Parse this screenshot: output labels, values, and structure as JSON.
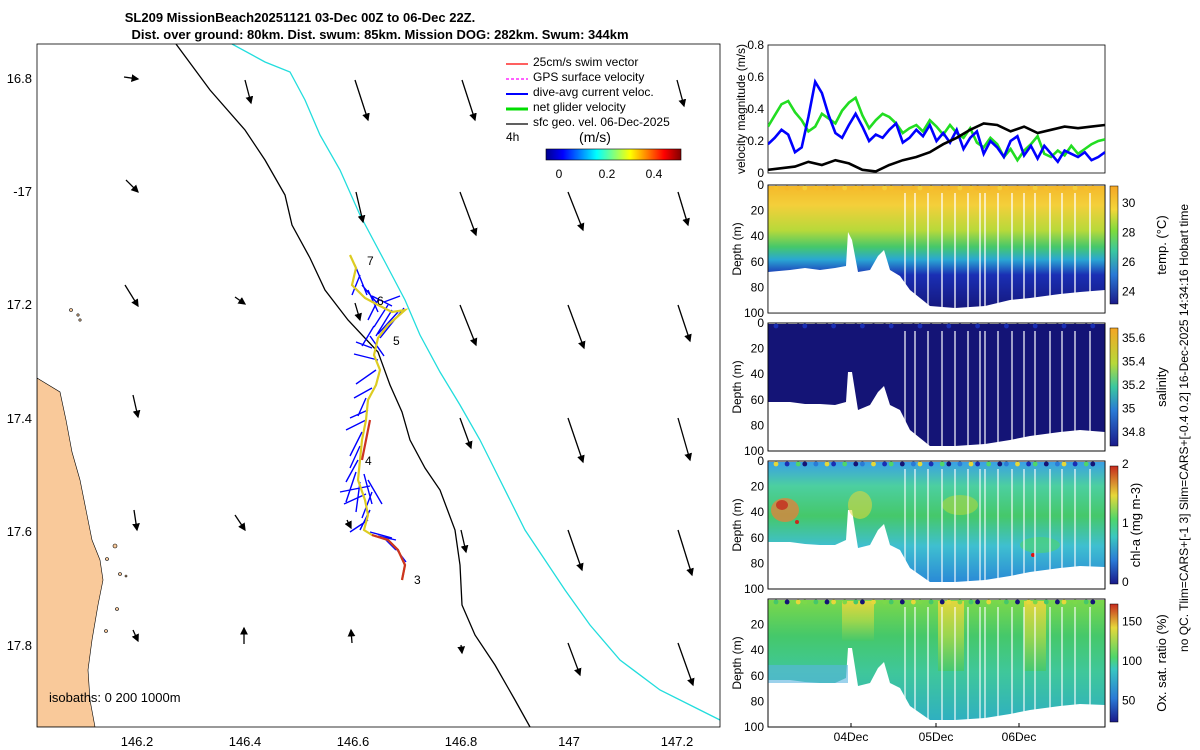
{
  "title": {
    "line1": "SL209 MissionBeach20251121 03-Dec 00Z to 06-Dec 22Z.",
    "line2": "Dist. over ground: 80km. Dist. swum: 85km. Mission DOG: 282km. Swum: 344km"
  },
  "map": {
    "lat_ticks": [
      "16.8",
      "-17",
      "17.2",
      "17.4",
      "17.6",
      "17.8"
    ],
    "lon_ticks": [
      "146.2",
      "146.4",
      "146.6",
      "146.8",
      "147",
      "147.2"
    ],
    "legend": [
      {
        "label": "25cm/s swim vector",
        "color": "#ff0000"
      },
      {
        "label": "GPS surface velocity",
        "color": "#ff00ff"
      },
      {
        "label": "dive-avg current veloc.",
        "color": "#0000ff"
      },
      {
        "label": "net glider velocity",
        "color": "#00dd00"
      },
      {
        "label": "sfc geo. vel. 06-Dec-2025",
        "color": "#000000"
      }
    ],
    "interval_label": "4h",
    "colorbar_label": "(m/s)",
    "colorbar_ticks": [
      "0",
      "0.2",
      "0.4"
    ],
    "waypoints": [
      "7",
      "6",
      "5",
      "4",
      "3"
    ],
    "isobaths_label": "isobaths: 0   200  1000m",
    "land_color": "#f9c99a",
    "isobath_200_color": "#000000",
    "isobath_1000_color": "#22dddd"
  },
  "chart_data": [
    {
      "type": "line",
      "title": "",
      "ylabel": "velocity magnitude (m/s)",
      "xlabel": "",
      "ylim": [
        0,
        0.8
      ],
      "yticks": [
        "0",
        "0.2",
        "0.4",
        "0.6",
        "0.8"
      ],
      "xlim": [
        0,
        4
      ],
      "series": [
        {
          "name": "net glider velocity",
          "color": "#22dd22",
          "x": [
            0.0,
            0.08,
            0.16,
            0.24,
            0.32,
            0.4,
            0.48,
            0.56,
            0.64,
            0.72,
            0.8,
            0.88,
            0.96,
            1.04,
            1.12,
            1.2,
            1.28,
            1.36,
            1.44,
            1.52,
            1.6,
            1.68,
            1.76,
            1.84,
            1.92,
            2.0,
            2.08,
            2.16,
            2.24,
            2.32,
            2.4,
            2.48,
            2.56,
            2.64,
            2.72,
            2.8,
            2.88,
            2.96,
            3.04,
            3.12,
            3.2,
            3.28,
            3.36,
            3.44,
            3.52,
            3.6,
            3.68,
            3.76,
            3.84,
            3.92,
            4.0
          ],
          "values": [
            0.29,
            0.36,
            0.43,
            0.45,
            0.38,
            0.33,
            0.26,
            0.29,
            0.37,
            0.34,
            0.31,
            0.39,
            0.44,
            0.47,
            0.36,
            0.28,
            0.33,
            0.37,
            0.35,
            0.31,
            0.25,
            0.28,
            0.3,
            0.26,
            0.33,
            0.29,
            0.24,
            0.3,
            0.25,
            0.22,
            0.28,
            0.19,
            0.16,
            0.22,
            0.18,
            0.1,
            0.15,
            0.08,
            0.14,
            0.18,
            0.23,
            0.12,
            0.1,
            0.14,
            0.11,
            0.17,
            0.12,
            0.15,
            0.18,
            0.2,
            0.21
          ]
        },
        {
          "name": "dive-avg current veloc.",
          "color": "#0000ff",
          "x": [
            0.0,
            0.08,
            0.16,
            0.24,
            0.32,
            0.4,
            0.48,
            0.56,
            0.64,
            0.72,
            0.8,
            0.88,
            0.96,
            1.04,
            1.12,
            1.2,
            1.28,
            1.36,
            1.44,
            1.52,
            1.6,
            1.68,
            1.76,
            1.84,
            1.92,
            2.0,
            2.08,
            2.16,
            2.24,
            2.32,
            2.4,
            2.48,
            2.56,
            2.64,
            2.72,
            2.8,
            2.88,
            2.96,
            3.04,
            3.12,
            3.2,
            3.28,
            3.36,
            3.44,
            3.52,
            3.6,
            3.68,
            3.76,
            3.84,
            3.92,
            4.0
          ],
          "values": [
            0.18,
            0.22,
            0.27,
            0.24,
            0.13,
            0.16,
            0.35,
            0.57,
            0.5,
            0.36,
            0.25,
            0.22,
            0.3,
            0.37,
            0.29,
            0.2,
            0.24,
            0.22,
            0.27,
            0.31,
            0.19,
            0.22,
            0.27,
            0.23,
            0.3,
            0.2,
            0.25,
            0.19,
            0.27,
            0.15,
            0.22,
            0.26,
            0.12,
            0.2,
            0.16,
            0.1,
            0.2,
            0.23,
            0.11,
            0.17,
            0.09,
            0.17,
            0.12,
            0.07,
            0.14,
            0.12,
            0.1,
            0.13,
            0.08,
            0.1,
            0.13
          ]
        },
        {
          "name": "sfc geo. vel.",
          "color": "#000000",
          "x": [
            0.0,
            0.16,
            0.32,
            0.48,
            0.64,
            0.8,
            0.96,
            1.12,
            1.28,
            1.44,
            1.6,
            1.76,
            1.92,
            2.08,
            2.24,
            2.4,
            2.56,
            2.72,
            2.88,
            3.04,
            3.2,
            3.36,
            3.52,
            3.68,
            3.84,
            4.0
          ],
          "values": [
            0.02,
            0.03,
            0.04,
            0.07,
            0.05,
            0.08,
            0.06,
            0.02,
            0.01,
            0.05,
            0.08,
            0.1,
            0.13,
            0.18,
            0.22,
            0.27,
            0.31,
            0.3,
            0.26,
            0.29,
            0.25,
            0.27,
            0.29,
            0.28,
            0.29,
            0.3
          ]
        }
      ]
    },
    {
      "type": "heatmap",
      "ylabel": "Depth (m)",
      "colorbar_label": "temp. (°C)",
      "colorbar_ticks": [
        "30",
        "28",
        "26",
        "24"
      ],
      "clim": [
        23,
        31
      ],
      "depth_ticks": [
        "0",
        "20",
        "40",
        "60",
        "80",
        "100"
      ],
      "ylim": [
        0,
        100
      ]
    },
    {
      "type": "heatmap",
      "ylabel": "Depth (m)",
      "colorbar_label": "salinity",
      "colorbar_ticks": [
        "35.6",
        "35.4",
        "35.2",
        "35",
        "34.8"
      ],
      "clim": [
        34.7,
        35.7
      ],
      "depth_ticks": [
        "0",
        "20",
        "40",
        "60",
        "80",
        "100"
      ],
      "ylim": [
        0,
        100
      ]
    },
    {
      "type": "heatmap",
      "ylabel": "Depth (m)",
      "colorbar_label": "chl-a (mg m-3)",
      "colorbar_ticks": [
        "2",
        "1",
        "0"
      ],
      "clim": [
        0,
        2
      ],
      "depth_ticks": [
        "0",
        "20",
        "40",
        "60",
        "80",
        "100"
      ],
      "ylim": [
        0,
        100
      ]
    },
    {
      "type": "heatmap",
      "ylabel": "Depth (m)",
      "colorbar_label": "Ox. sat. ratio (%)",
      "colorbar_ticks": [
        "150",
        "100",
        "50"
      ],
      "clim": [
        25,
        175
      ],
      "depth_ticks": [
        "20",
        "40",
        "60",
        "80",
        "100"
      ],
      "ylim": [
        0,
        100
      ],
      "xticks": [
        "04Dec",
        "05Dec",
        "06Dec"
      ]
    }
  ],
  "side_note": {
    "line1": "no QC. Tlim=CARS+[-1 3] Slim=CARS+[-0.4 0.2] 16-Dec-2025 14:34:16 Hobart time"
  }
}
